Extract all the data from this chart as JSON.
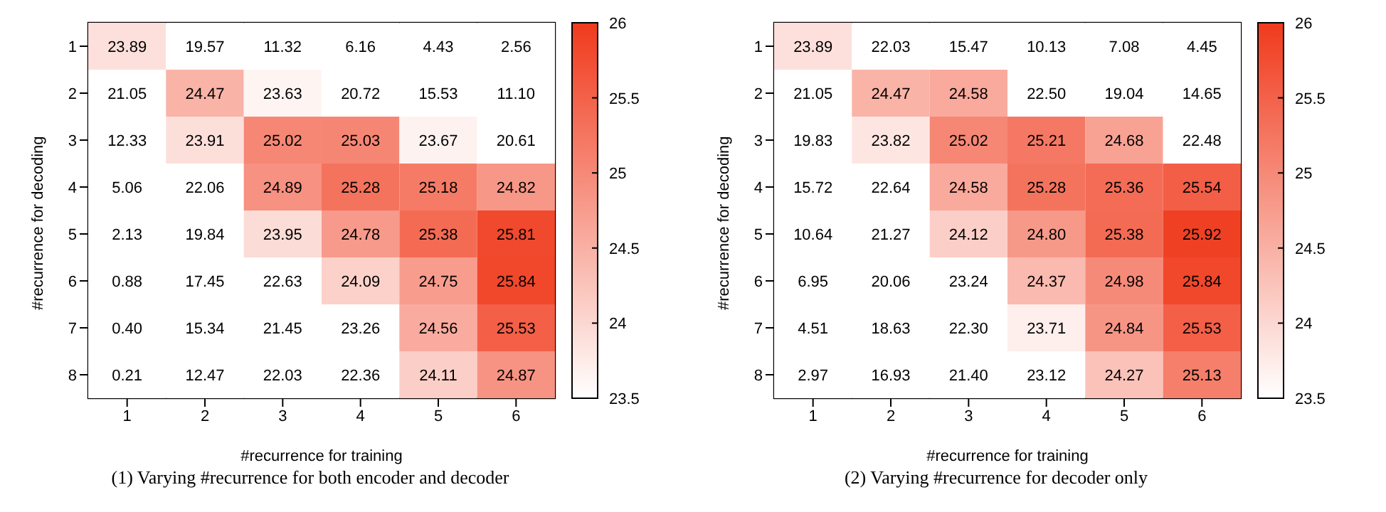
{
  "chart_data": [
    {
      "type": "heatmap",
      "categories": [
        "1",
        "2",
        "3",
        "4",
        "5",
        "6"
      ],
      "y_categories": [
        "1",
        "2",
        "3",
        "4",
        "5",
        "6",
        "7",
        "8"
      ],
      "xlabel": "#recurrence for training",
      "ylabel": "#recurrence for decoding",
      "clim": [
        23.5,
        26
      ],
      "cticks": [
        23.5,
        24,
        24.5,
        25,
        25.5,
        26
      ],
      "colors": [
        "#ffffff",
        "#f03a1c"
      ],
      "annotations": [
        "(1) Varying #recurrence for both encoder and decoder"
      ],
      "cells": [
        [
          23.89,
          19.57,
          11.32,
          6.16,
          4.43,
          2.56
        ],
        [
          21.05,
          24.47,
          23.63,
          20.72,
          15.53,
          11.1
        ],
        [
          12.33,
          23.91,
          25.02,
          25.03,
          23.67,
          20.61
        ],
        [
          5.06,
          22.06,
          24.89,
          25.28,
          25.18,
          24.82
        ],
        [
          2.13,
          19.84,
          23.95,
          24.78,
          25.38,
          25.81
        ],
        [
          0.88,
          17.45,
          22.63,
          24.09,
          24.75,
          25.84
        ],
        [
          0.4,
          15.34,
          21.45,
          23.26,
          24.56,
          25.53
        ],
        [
          0.21,
          12.47,
          22.03,
          22.36,
          24.11,
          24.87
        ]
      ],
      "cell_labels": [
        [
          "23.89",
          "19.57",
          "11.32",
          "6.16",
          "4.43",
          "2.56"
        ],
        [
          "21.05",
          "24.47",
          "23.63",
          "20.72",
          "15.53",
          "11.10"
        ],
        [
          "12.33",
          "23.91",
          "25.02",
          "25.03",
          "23.67",
          "20.61"
        ],
        [
          "5.06",
          "22.06",
          "24.89",
          "25.28",
          "25.18",
          "24.82"
        ],
        [
          "2.13",
          "19.84",
          "23.95",
          "24.78",
          "25.38",
          "25.81"
        ],
        [
          "0.88",
          "17.45",
          "22.63",
          "24.09",
          "24.75",
          "25.84"
        ],
        [
          "0.40",
          "15.34",
          "21.45",
          "23.26",
          "24.56",
          "25.53"
        ],
        [
          "0.21",
          "12.47",
          "22.03",
          "22.36",
          "24.11",
          "24.87"
        ]
      ]
    },
    {
      "type": "heatmap",
      "categories": [
        "1",
        "2",
        "3",
        "4",
        "5",
        "6"
      ],
      "y_categories": [
        "1",
        "2",
        "3",
        "4",
        "5",
        "6",
        "7",
        "8"
      ],
      "xlabel": "#recurrence for training",
      "ylabel": "#recurrence for decoding",
      "clim": [
        23.5,
        26
      ],
      "cticks": [
        23.5,
        24,
        24.5,
        25,
        25.5,
        26
      ],
      "colors": [
        "#ffffff",
        "#f03a1c"
      ],
      "annotations": [
        "(2) Varying #recurrence for decoder only"
      ],
      "cells": [
        [
          23.89,
          22.03,
          15.47,
          10.13,
          7.08,
          4.45
        ],
        [
          21.05,
          24.47,
          24.58,
          22.5,
          19.04,
          14.65
        ],
        [
          19.83,
          23.82,
          25.02,
          25.21,
          24.68,
          22.48
        ],
        [
          15.72,
          22.64,
          24.58,
          25.28,
          25.36,
          25.54
        ],
        [
          10.64,
          21.27,
          24.12,
          24.8,
          25.38,
          25.92
        ],
        [
          6.95,
          20.06,
          23.24,
          24.37,
          24.98,
          25.84
        ],
        [
          4.51,
          18.63,
          22.3,
          23.71,
          24.84,
          25.53
        ],
        [
          2.97,
          16.93,
          21.4,
          23.12,
          24.27,
          25.13
        ]
      ],
      "cell_labels": [
        [
          "23.89",
          "22.03",
          "15.47",
          "10.13",
          "7.08",
          "4.45"
        ],
        [
          "21.05",
          "24.47",
          "24.58",
          "22.50",
          "19.04",
          "14.65"
        ],
        [
          "19.83",
          "23.82",
          "25.02",
          "25.21",
          "24.68",
          "22.48"
        ],
        [
          "15.72",
          "22.64",
          "24.58",
          "25.28",
          "25.36",
          "25.54"
        ],
        [
          "10.64",
          "21.27",
          "24.12",
          "24.80",
          "25.38",
          "25.92"
        ],
        [
          "6.95",
          "20.06",
          "23.24",
          "24.37",
          "24.98",
          "25.84"
        ],
        [
          "4.51",
          "18.63",
          "22.30",
          "23.71",
          "24.84",
          "25.53"
        ],
        [
          "2.97",
          "16.93",
          "21.40",
          "23.12",
          "24.27",
          "25.13"
        ]
      ]
    }
  ]
}
